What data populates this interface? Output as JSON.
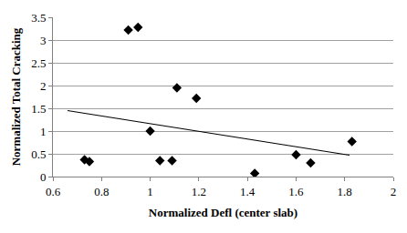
{
  "chart_data": {
    "type": "scatter",
    "x_label": "Normalized Defl (center slab)",
    "y_label": "Normalized Total Cracking",
    "xlim": [
      0.6,
      2
    ],
    "xticks": [
      0.6,
      0.8,
      1,
      1.2,
      1.4,
      1.6,
      1.8,
      2
    ],
    "ylim": [
      0,
      3.5
    ],
    "yticks": [
      0,
      0.5,
      1,
      1.5,
      2,
      2.5,
      3,
      3.5
    ],
    "grid": true,
    "series": [
      {
        "type": "scatter",
        "marker": "diamond",
        "color": "#000000",
        "x": [
          0.73,
          0.75,
          0.91,
          0.95,
          1.0,
          1.04,
          1.09,
          1.11,
          1.19,
          1.43,
          1.6,
          1.66,
          1.83
        ],
        "values": [
          0.37,
          0.33,
          3.22,
          3.28,
          1.0,
          0.35,
          0.35,
          1.95,
          1.72,
          0.07,
          0.48,
          0.3,
          0.77
        ]
      },
      {
        "type": "line",
        "line_style": "solid",
        "color": "#000000",
        "x": [
          0.66,
          1.82
        ],
        "values": [
          1.45,
          0.47
        ]
      }
    ]
  }
}
